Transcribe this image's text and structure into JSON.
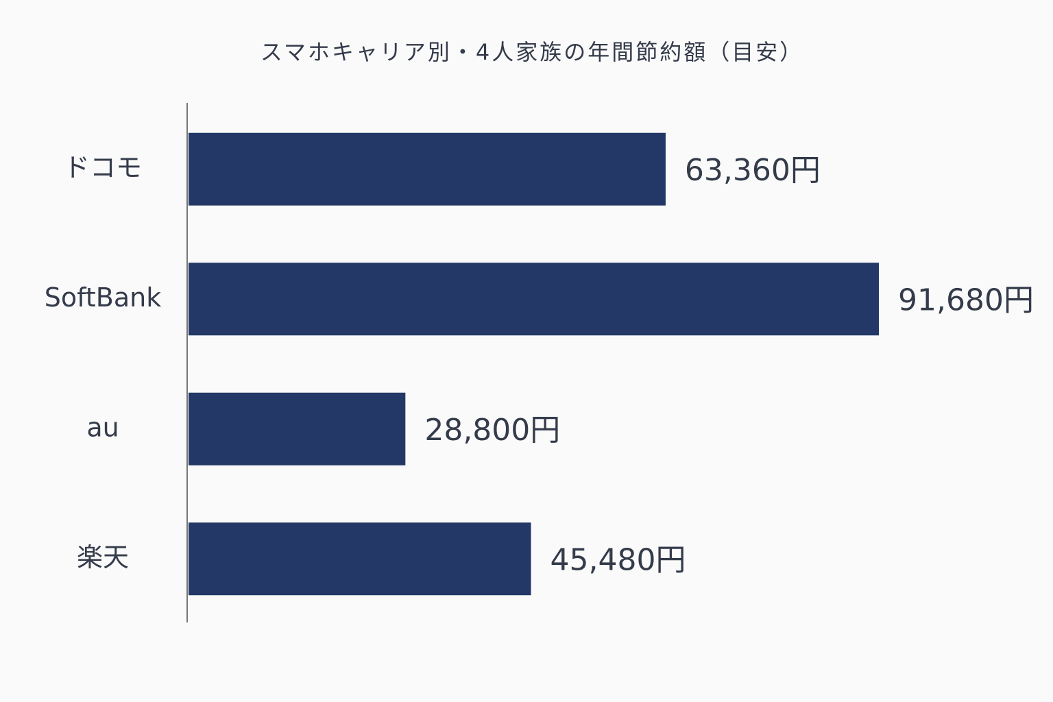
{
  "chart_data": {
    "type": "hbar",
    "title": "スマホキャリア別・4人家族の年間節約額（目安）",
    "categories": [
      "ドコモ",
      "SoftBank",
      "au",
      "楽天"
    ],
    "values": [
      63360,
      91680,
      28800,
      45480
    ],
    "value_labels": [
      "63,360円",
      "91,680円",
      "28,800円",
      "45,480円"
    ],
    "color": "#233866"
  }
}
